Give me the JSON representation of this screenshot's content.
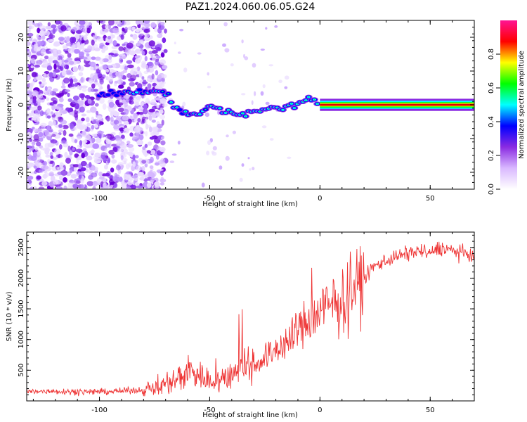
{
  "title": "PAZ1.2024.060.06.05.G24",
  "chart_data": [
    {
      "type": "heatmap",
      "xlabel": "Height of straight line (km)",
      "ylabel": "Frequency (Hz)",
      "xlim": [
        -133,
        70
      ],
      "ylim": [
        -25,
        25
      ],
      "xticks": [
        -100,
        -50,
        0,
        50
      ],
      "yticks": [
        -20,
        -10,
        0,
        10,
        20
      ],
      "colorbar": {
        "label": "Normalized spectral amplitude",
        "range": [
          0,
          1
        ],
        "ticks": [
          "0.0",
          "0.2",
          "0.4",
          "0.6",
          "0.8"
        ],
        "colors": [
          "#ffffff",
          "#d9b8ff",
          "#8a2be2",
          "#0000ff",
          "#00ffff",
          "#00ff00",
          "#ffff00",
          "#ff0000",
          "#ff1493"
        ]
      },
      "ridge": {
        "x": [
          -100,
          -95,
          -90,
          -85,
          -80,
          -75,
          -70,
          -65,
          -60,
          -55,
          -50,
          -45,
          -40,
          -35,
          -30,
          -25,
          -20,
          -15,
          -10,
          -5,
          0,
          10,
          20,
          30,
          40,
          50,
          60,
          70
        ],
        "y": [
          3,
          3.5,
          3,
          3.5,
          4,
          4,
          3.5,
          -1,
          -3,
          -3,
          0,
          -2,
          -2,
          -3,
          -2,
          -1,
          -1,
          -0.5,
          0,
          2,
          0,
          0,
          0,
          0,
          0,
          0,
          0,
          0
        ]
      }
    },
    {
      "type": "line",
      "xlabel": "Height of straight line (km)",
      "ylabel": "SNR (10 * v/v)",
      "xlim": [
        -133,
        70
      ],
      "ylim": [
        0,
        2750
      ],
      "xticks": [
        -100,
        -50,
        0,
        50
      ],
      "yticks": [
        500,
        1000,
        1500,
        2000,
        2500
      ],
      "series": [
        {
          "color": "#ee3333",
          "x": [
            -133,
            -120,
            -110,
            -100,
            -90,
            -80,
            -75,
            -70,
            -65,
            -60,
            -55,
            -50,
            -45,
            -40,
            -35,
            -30,
            -25,
            -20,
            -15,
            -10,
            -5,
            0,
            5,
            10,
            15,
            20,
            25,
            30,
            35,
            40,
            45,
            50,
            55,
            60,
            65,
            70
          ],
          "y": [
            150,
            160,
            150,
            150,
            160,
            180,
            220,
            280,
            350,
            500,
            450,
            300,
            330,
            450,
            600,
            600,
            700,
            850,
            950,
            1150,
            1300,
            1450,
            1550,
            1600,
            1850,
            2000,
            2200,
            2300,
            2350,
            2400,
            2450,
            2400,
            2500,
            2450,
            2400,
            2350
          ]
        }
      ]
    }
  ]
}
